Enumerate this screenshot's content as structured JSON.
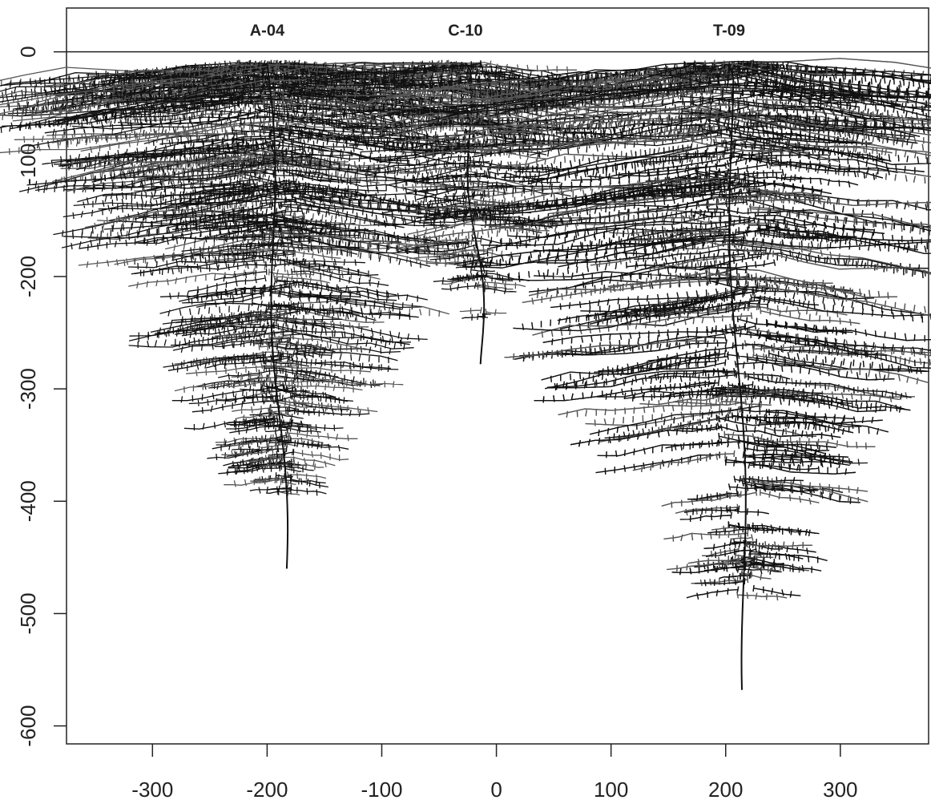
{
  "chart_data": {
    "type": "root-architecture",
    "series": [
      {
        "name": "A-04",
        "x": -200,
        "depth": -460
      },
      {
        "name": "C-10",
        "x": -27,
        "depth": -278
      },
      {
        "name": "T-09",
        "x": 203,
        "depth": -568
      }
    ],
    "xlim": [
      -375,
      377
    ],
    "ylim": [
      -616,
      39
    ],
    "xticks": [
      -300,
      -200,
      -100,
      0,
      100,
      200,
      300
    ],
    "yticks": [
      0,
      -100,
      -200,
      -300,
      -400,
      -500,
      -600
    ],
    "color": "#111111"
  }
}
